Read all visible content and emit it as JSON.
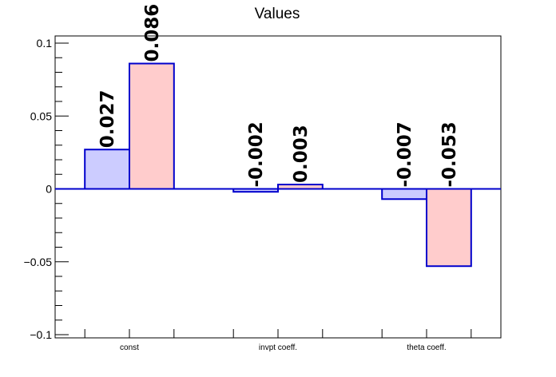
{
  "chart_data": {
    "type": "bar",
    "title": "Values",
    "xlabel": "",
    "ylabel": "",
    "categories": [
      "const",
      "invpt coeff.",
      "theta coeff."
    ],
    "series": [
      {
        "values": [
          0.027,
          -0.002,
          -0.007
        ],
        "fill": "#ccccff",
        "stroke": "#0000cc"
      },
      {
        "values": [
          0.086,
          0.003,
          -0.053
        ],
        "fill": "#ffcccc",
        "stroke": "#0000cc"
      }
    ],
    "data_labels": [
      [
        "0.027",
        "-0.002",
        "-0.007"
      ],
      [
        "0.086",
        "0.003",
        "-0.053"
      ]
    ],
    "ylim": [
      -0.1,
      0.1
    ],
    "yticks": [
      {
        "value": 0.1,
        "label": "0.1"
      },
      {
        "value": 0.05,
        "label": "0.05"
      },
      {
        "value": 0,
        "label": "0"
      },
      {
        "value": -0.05,
        "label": "−0.05"
      },
      {
        "value": -0.1,
        "label": "−0.1"
      }
    ],
    "grid": false,
    "zero_line_color": "#0000cc"
  }
}
